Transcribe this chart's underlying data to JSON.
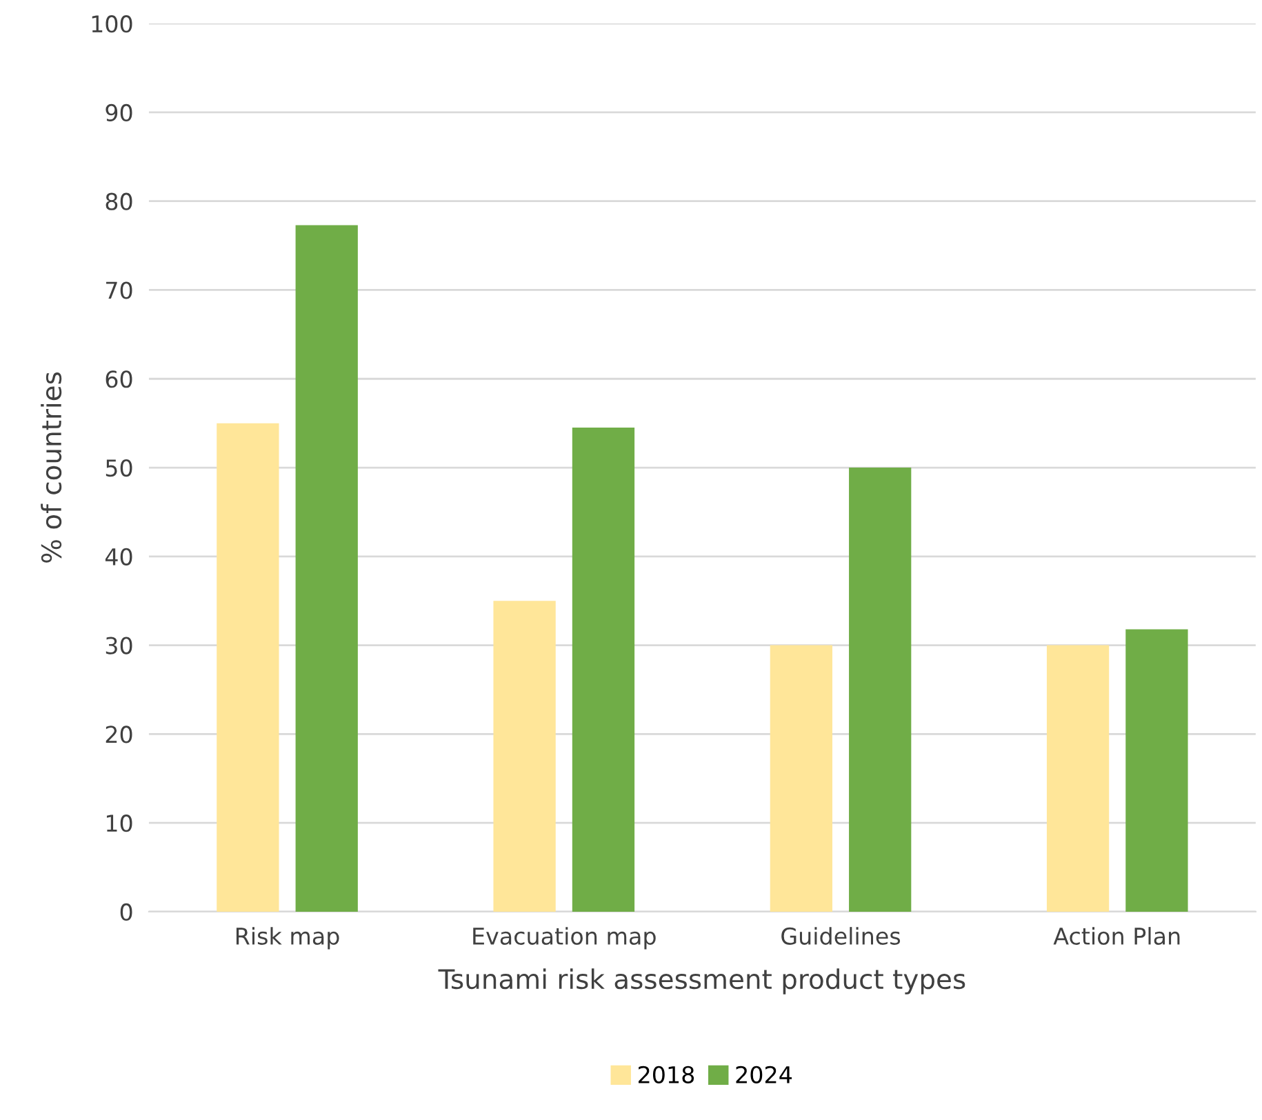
{
  "chart_data": {
    "type": "bar",
    "xlabel": "Tsunami risk assessment product types",
    "ylabel": "% of countries",
    "categories": [
      "Risk map",
      "Evacuation map",
      "Guidelines",
      "Action Plan"
    ],
    "series": [
      {
        "name": "2018",
        "color": "#ffe699",
        "values": [
          55,
          35,
          30,
          30
        ]
      },
      {
        "name": "2024",
        "color": "#70ad47",
        "values": [
          77.3,
          54.5,
          50,
          31.8
        ]
      }
    ],
    "ylim": [
      0,
      100
    ],
    "yticks": [
      0,
      10,
      20,
      30,
      40,
      50,
      60,
      70,
      80,
      90,
      100
    ],
    "grid": "y",
    "legend": "bottom"
  }
}
